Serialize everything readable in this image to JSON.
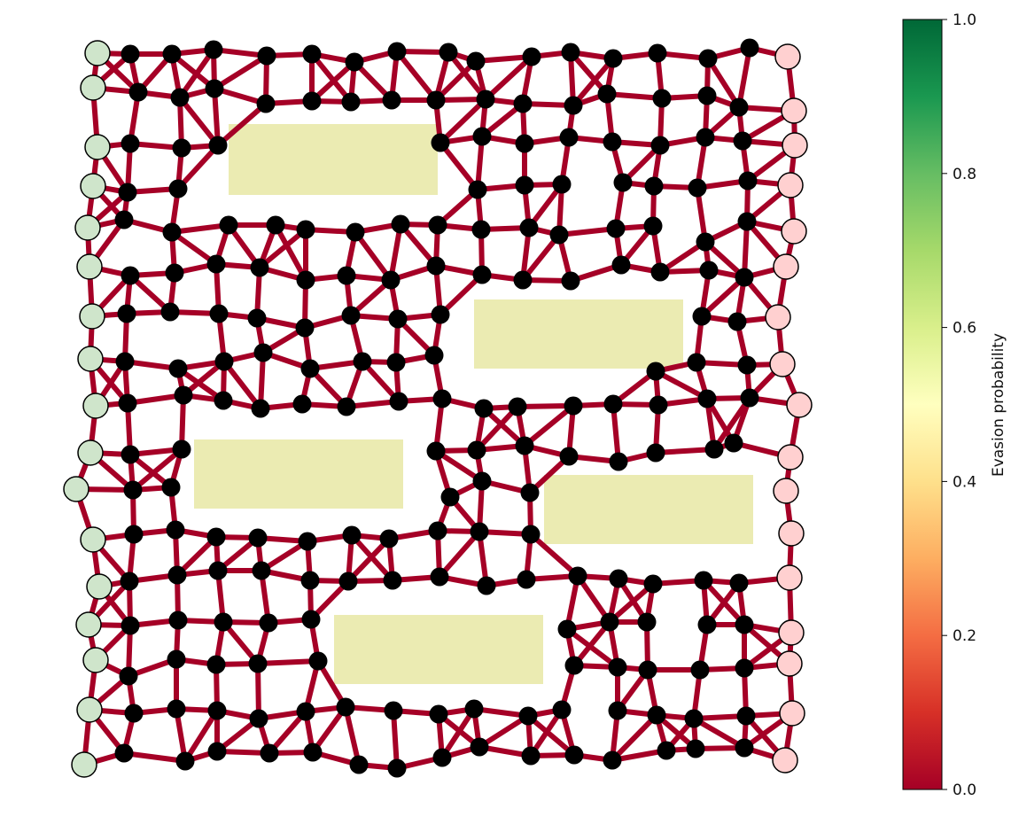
{
  "chart_data": {
    "type": "network graph with colorbar",
    "colorbar": {
      "label": "Evasion probability",
      "range": [
        0.0,
        1.0
      ],
      "ticks": [
        "0.0",
        "0.2",
        "0.4",
        "0.6",
        "0.8",
        "1.0"
      ],
      "colormap": "RdYlGn",
      "stops": [
        "#a50026",
        "#d73027",
        "#f46d43",
        "#fdae61",
        "#fee08b",
        "#ffffbf",
        "#d9ef8b",
        "#a6d96a",
        "#66bd63",
        "#1a9850",
        "#006837"
      ]
    },
    "edge_color": "#a50026",
    "obstacle_color": "#ebebb2",
    "entry_node_color": "#cfe5cb",
    "exit_node_color": "#ffd0d0",
    "inner_node_color": "#000000"
  }
}
